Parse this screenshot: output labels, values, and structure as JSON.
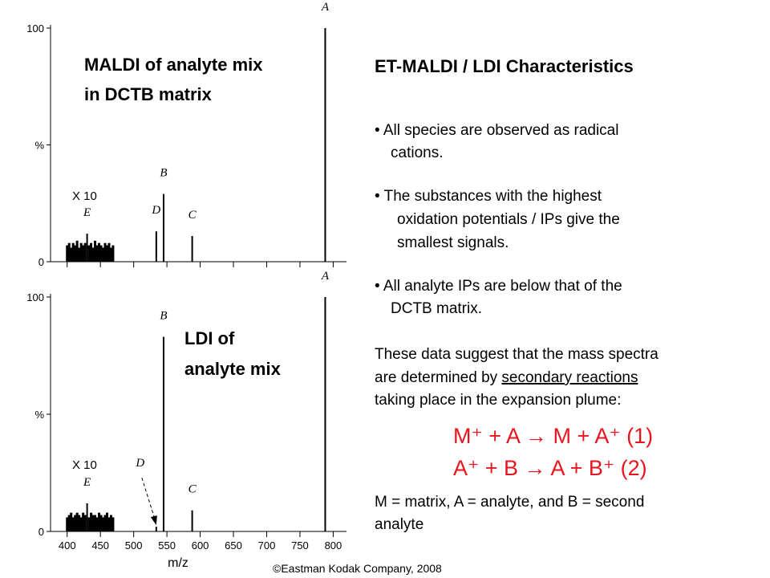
{
  "chart_data": [
    {
      "type": "stick",
      "title": [
        "MALDI of analyte mix",
        "in DCTB matrix"
      ],
      "scale_note": "X 10",
      "xlim": [
        375,
        820
      ],
      "ylim": [
        0,
        100
      ],
      "xticks": [
        400,
        450,
        500,
        550,
        600,
        650,
        700,
        750,
        800
      ],
      "xtick_labels": false,
      "yticks": [
        0,
        {
          "value": 50,
          "label": "%"
        },
        100
      ],
      "color": "#000000",
      "peaks": {
        "labels": [
          "E",
          "D",
          "B",
          "C",
          "A"
        ],
        "x": [
          430,
          534,
          545,
          588,
          788
        ],
        "values": [
          12,
          13,
          29,
          11,
          100
        ]
      },
      "baseline": {
        "x": [
          400,
          403,
          406,
          409,
          412,
          415,
          418,
          421,
          424,
          427,
          433,
          436,
          439,
          442,
          445,
          448,
          451,
          454,
          457,
          460,
          463,
          466,
          469
        ],
        "values": [
          7,
          8,
          6,
          8,
          7,
          9,
          6,
          8,
          7,
          8,
          7,
          8,
          6,
          9,
          7,
          8,
          7,
          6,
          8,
          7,
          8,
          6,
          7
        ]
      }
    },
    {
      "type": "stick",
      "title": [
        "LDI of",
        "analyte mix"
      ],
      "scale_note": "X 10",
      "xlim": [
        375,
        820
      ],
      "ylim": [
        0,
        100
      ],
      "xticks": [
        400,
        450,
        500,
        550,
        600,
        650,
        700,
        750,
        800
      ],
      "xtick_labels": true,
      "yticks": [
        0,
        {
          "value": 50,
          "label": "%"
        },
        100
      ],
      "xlabel": "m/z",
      "color": "#000000",
      "peaks": {
        "labels": [
          "E",
          "D",
          "B",
          "C",
          "A"
        ],
        "x": [
          430,
          534,
          545,
          588,
          788
        ],
        "values": [
          12,
          2,
          83,
          9,
          100
        ]
      },
      "baseline": {
        "x": [
          400,
          403,
          406,
          409,
          412,
          415,
          418,
          421,
          424,
          427,
          433,
          436,
          439,
          442,
          445,
          448,
          451,
          454,
          457,
          460,
          463,
          466,
          469
        ],
        "values": [
          6,
          7,
          8,
          6,
          7,
          8,
          7,
          6,
          8,
          7,
          6,
          8,
          7,
          7,
          6,
          8,
          7,
          6,
          7,
          8,
          6,
          7,
          6
        ]
      }
    }
  ],
  "slide": {
    "heading": "ET-MALDI / LDI Characteristics",
    "bullets": [
      [
        "• All species are observed as radical",
        "cations."
      ],
      [
        "• The substances with the highest",
        "oxidation potentials / IPs give the",
        "smallest signals."
      ],
      [
        "• All analyte IPs are below that of the",
        "DCTB  matrix."
      ]
    ],
    "paragraph": [
      "These data suggest that the mass spectra",
      "are determined by ",
      "secondary reactions",
      "taking place in the expansion plume:"
    ],
    "equations": [
      "M⁺ + A  → M + A⁺  (1)",
      "A⁺ + B  → A + B⁺  (2)"
    ],
    "definition": [
      "M = matrix, A = analyte, and B = second",
      "analyte"
    ],
    "copyright": "©Eastman Kodak Company, 2008"
  }
}
